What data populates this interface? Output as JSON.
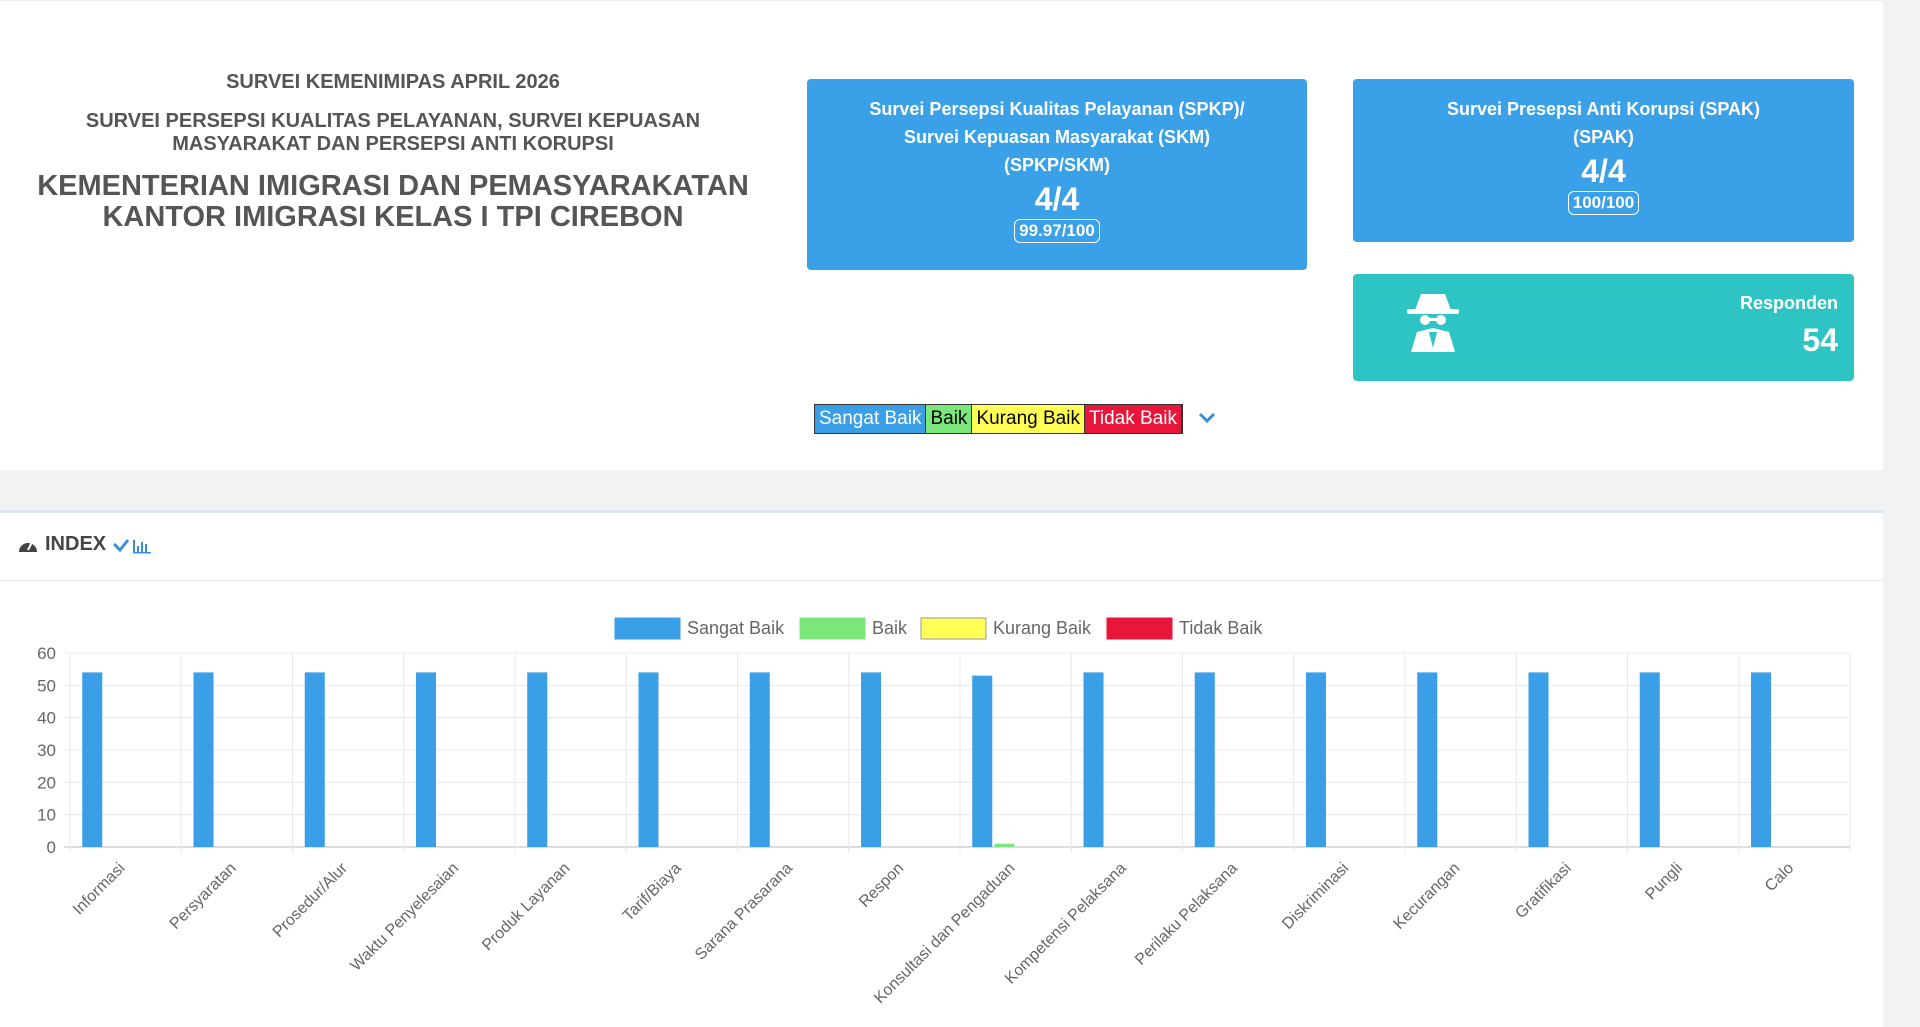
{
  "header": {
    "survey": "SURVEI KEMENIMIPAS APRIL 2026",
    "subtitle": [
      "SURVEI PERSEPSI KUALITAS PELAYANAN, SURVEI KEPUASAN",
      "MASYARAKAT DAN PERSEPSI ANTI KORUPSI"
    ],
    "office": [
      "KEMENTERIAN IMIGRASI DAN PEMASYARAKATAN",
      "KANTOR IMIGRASI KELAS I TPI CIREBON"
    ]
  },
  "cards": [
    {
      "title": [
        "Survei Persepsi Kualitas Pelayanan (SPKP)/",
        "Survei Kepuasan Masyarakat (SKM)",
        "(SPKP/SKM)"
      ],
      "score": "4/4",
      "index": "99.97/100"
    },
    {
      "title": [
        "Survei Presepsi Anti Korupsi (SPAK)",
        "(SPAK)"
      ],
      "score": "4/4",
      "index": "100/100"
    }
  ],
  "respondents": {
    "label": "Responden",
    "count": 54
  },
  "index": {
    "title": "INDEX"
  },
  "chart_data": {
    "type": "bar",
    "categories": [
      "Informasi",
      "Persyaratan",
      "Prosedur/Alur",
      "Waktu Penyelesaian",
      "Produk Layanan",
      "Tarif/Biaya",
      "Sarana Prasarana",
      "Respon",
      "Konsultasi dan Pengaduan",
      "Kompetensi Pelaksana",
      "Perilaku Pelaksana",
      "Diskriminasi",
      "Kecurangan",
      "Gratifikasi",
      "Pungli",
      "Calo"
    ],
    "series": [
      {
        "name": "Sangat Baik",
        "color": "#3a9fe6",
        "values": [
          54,
          54,
          54,
          54,
          54,
          54,
          54,
          54,
          53,
          54,
          54,
          54,
          54,
          54,
          54,
          54
        ]
      },
      {
        "name": "Baik",
        "color": "#7be77b",
        "values": [
          0,
          0,
          0,
          0,
          0,
          0,
          0,
          0,
          1,
          0,
          0,
          0,
          0,
          0,
          0,
          0
        ]
      },
      {
        "name": "Kurang Baik",
        "color": "#ffff55",
        "values": [
          0,
          0,
          0,
          0,
          0,
          0,
          0,
          0,
          0,
          0,
          0,
          0,
          0,
          0,
          0,
          0
        ]
      },
      {
        "name": "Tidak Baik",
        "color": "#e8163a",
        "values": [
          0,
          0,
          0,
          0,
          0,
          0,
          0,
          0,
          0,
          0,
          0,
          0,
          0,
          0,
          0,
          0
        ]
      }
    ],
    "ylim": [
      0,
      60
    ],
    "yticks": [
      0,
      10,
      20,
      30,
      40,
      50,
      60
    ],
    "grid": true,
    "legend": "top"
  }
}
